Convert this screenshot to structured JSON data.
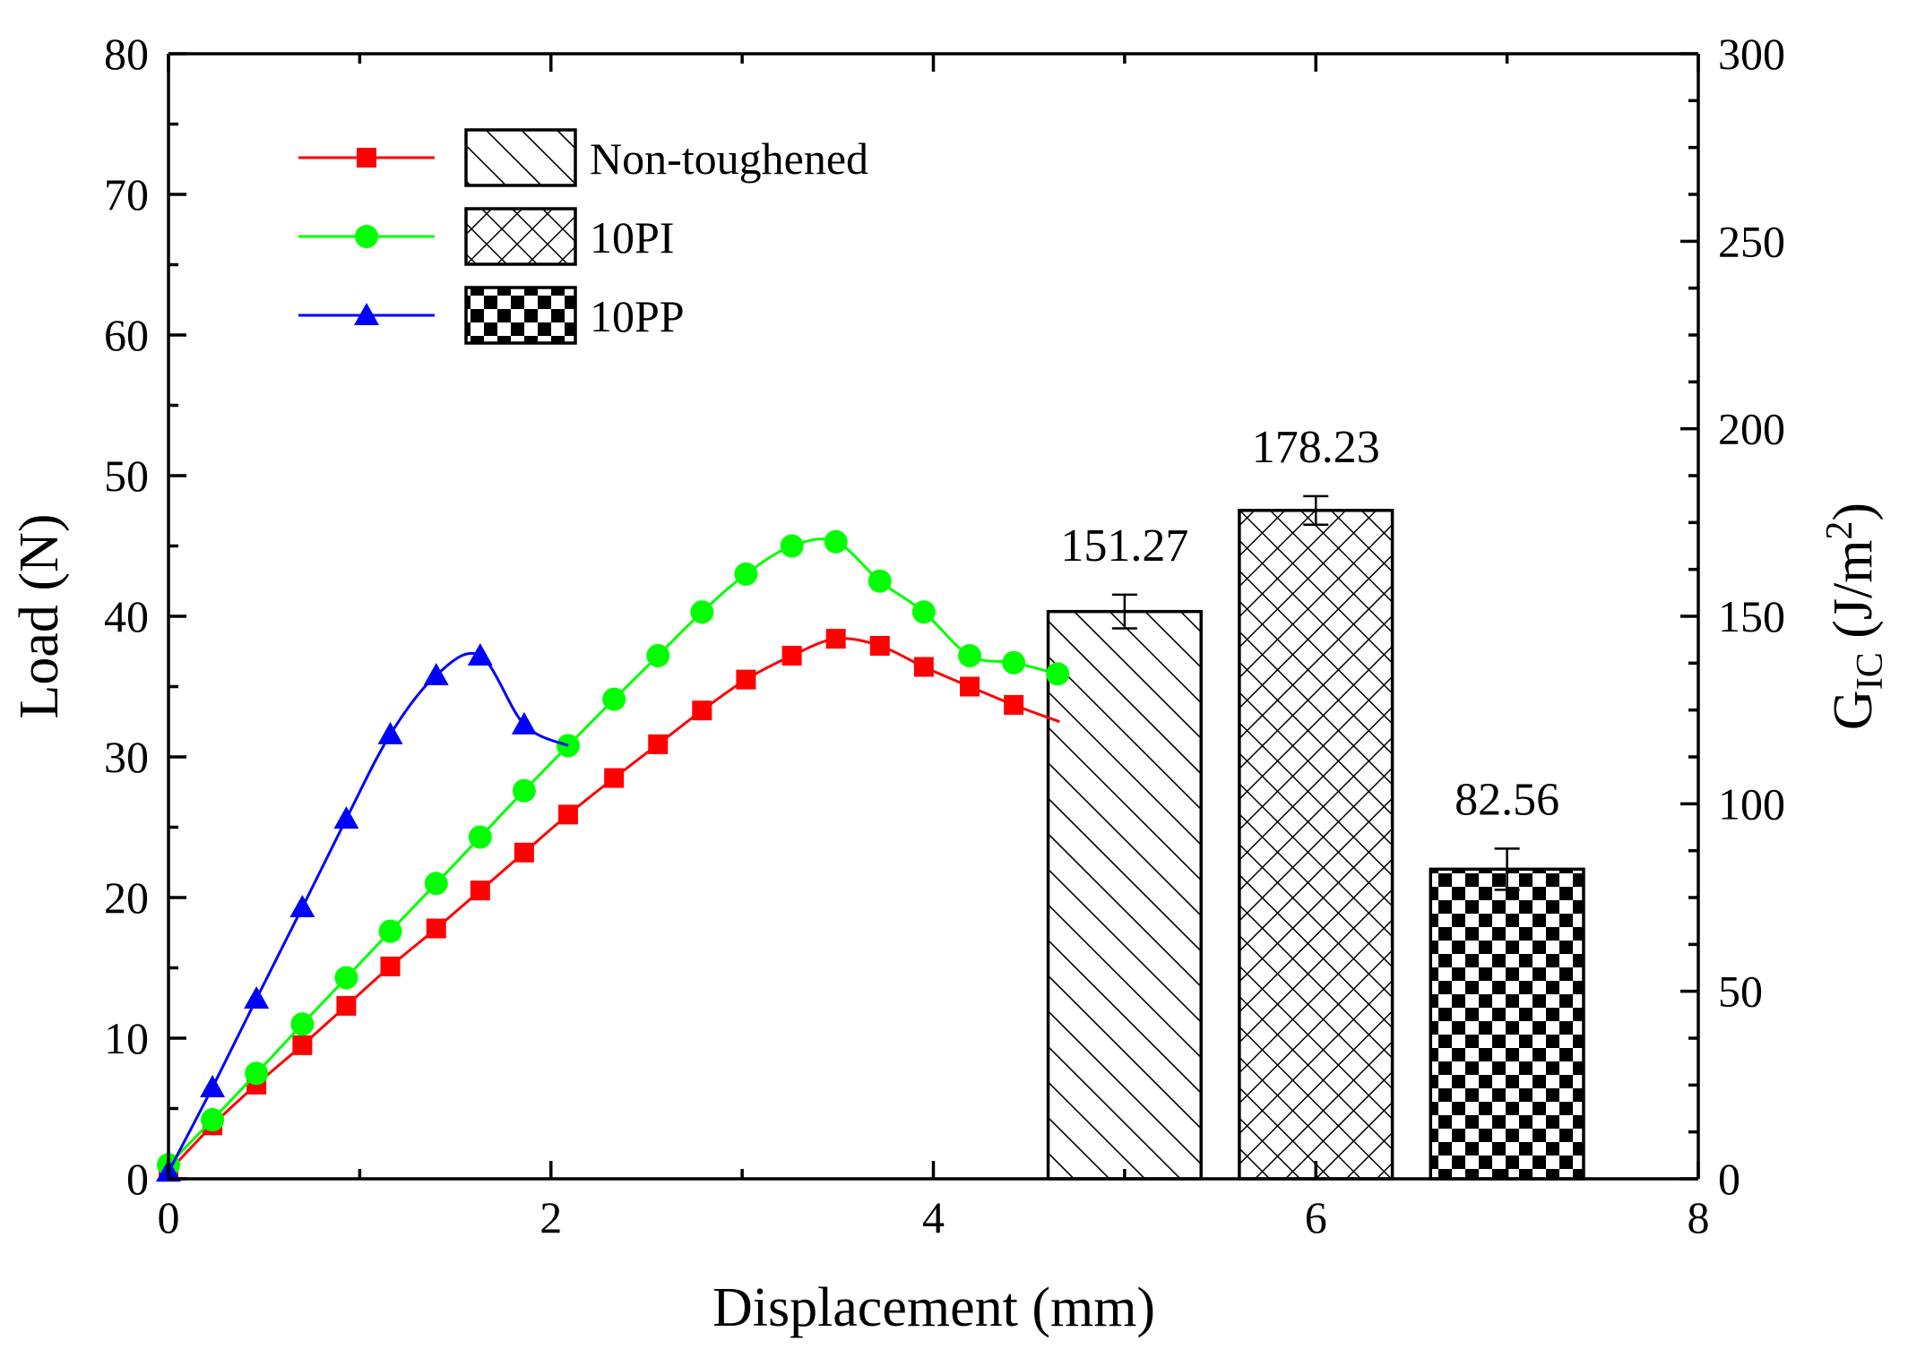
{
  "chart_data": {
    "type": "line+bar",
    "xlabel": "Displacement (mm)",
    "ylabel_left": "Load (N)",
    "ylabel_right_main": "G",
    "ylabel_right_sub": "IC",
    "ylabel_right_unit_pre": " (J/m",
    "ylabel_right_unit_sup": "2",
    "ylabel_right_unit_post": ")",
    "xlim": [
      0,
      8
    ],
    "ylim_left": [
      0,
      80
    ],
    "ylim_right": [
      0,
      300
    ],
    "x_ticks": [
      "0",
      "2",
      "4",
      "6",
      "8"
    ],
    "y_left_ticks": [
      "0",
      "10",
      "20",
      "30",
      "40",
      "50",
      "60",
      "70",
      "80"
    ],
    "y_right_ticks": [
      "0",
      "50",
      "100",
      "150",
      "200",
      "250",
      "300"
    ],
    "line_series": [
      {
        "name": "Non-toughened",
        "color": "#ff0000",
        "marker": "square",
        "x": [
          0.0,
          0.23,
          0.46,
          0.7,
          0.93,
          1.16,
          1.4,
          1.63,
          1.86,
          2.09,
          2.33,
          2.56,
          2.79,
          3.02,
          3.26,
          3.49,
          3.72,
          3.95,
          4.19,
          4.42
        ],
        "y": [
          0.5,
          3.8,
          6.7,
          9.5,
          12.3,
          15.1,
          17.8,
          20.5,
          23.2,
          25.9,
          28.5,
          30.9,
          33.3,
          35.5,
          37.2,
          38.4,
          37.9,
          36.4,
          35.0,
          33.7
        ],
        "tail_x": [
          4.66
        ],
        "tail_y": [
          32.5
        ]
      },
      {
        "name": "10PI",
        "color": "#00ff00",
        "marker": "circle",
        "x": [
          0.0,
          0.23,
          0.46,
          0.7,
          0.93,
          1.16,
          1.4,
          1.63,
          1.86,
          2.09,
          2.33,
          2.56,
          2.79,
          3.02,
          3.26,
          3.49,
          3.72,
          3.95,
          4.19,
          4.42,
          4.65
        ],
        "y": [
          1.0,
          4.2,
          7.5,
          11.0,
          14.3,
          17.6,
          21.0,
          24.3,
          27.6,
          30.8,
          34.1,
          37.2,
          40.3,
          43.0,
          45.0,
          45.3,
          42.5,
          40.3,
          37.2,
          36.7,
          35.9
        ],
        "tail_x": [],
        "tail_y": []
      },
      {
        "name": "10PP",
        "color": "#0000ff",
        "marker": "triangle",
        "x": [
          0.0,
          0.23,
          0.46,
          0.7,
          0.93,
          1.16,
          1.4,
          1.63,
          1.86
        ],
        "y": [
          0.5,
          6.5,
          12.8,
          19.3,
          25.6,
          31.6,
          35.8,
          37.2,
          32.3
        ],
        "tail_x": [
          2.09
        ],
        "tail_y": [
          30.8
        ]
      }
    ],
    "bar_series": [
      {
        "name": "Non-toughened",
        "x": 5.0,
        "value": 151.27,
        "error": 4.5,
        "pattern": "hatch-diagonal",
        "label": "151.27"
      },
      {
        "name": "10PI",
        "x": 6.0,
        "value": 178.23,
        "error": 3.8,
        "pattern": "hatch-cross",
        "label": "178.23"
      },
      {
        "name": "10PP",
        "x": 7.0,
        "value": 82.56,
        "error": 5.5,
        "pattern": "checkerboard",
        "label": "82.56"
      }
    ],
    "bar_width_data": 0.8,
    "legend": {
      "position": "top-left",
      "entries": [
        "Non-toughened",
        "10PI",
        "10PP"
      ]
    }
  }
}
